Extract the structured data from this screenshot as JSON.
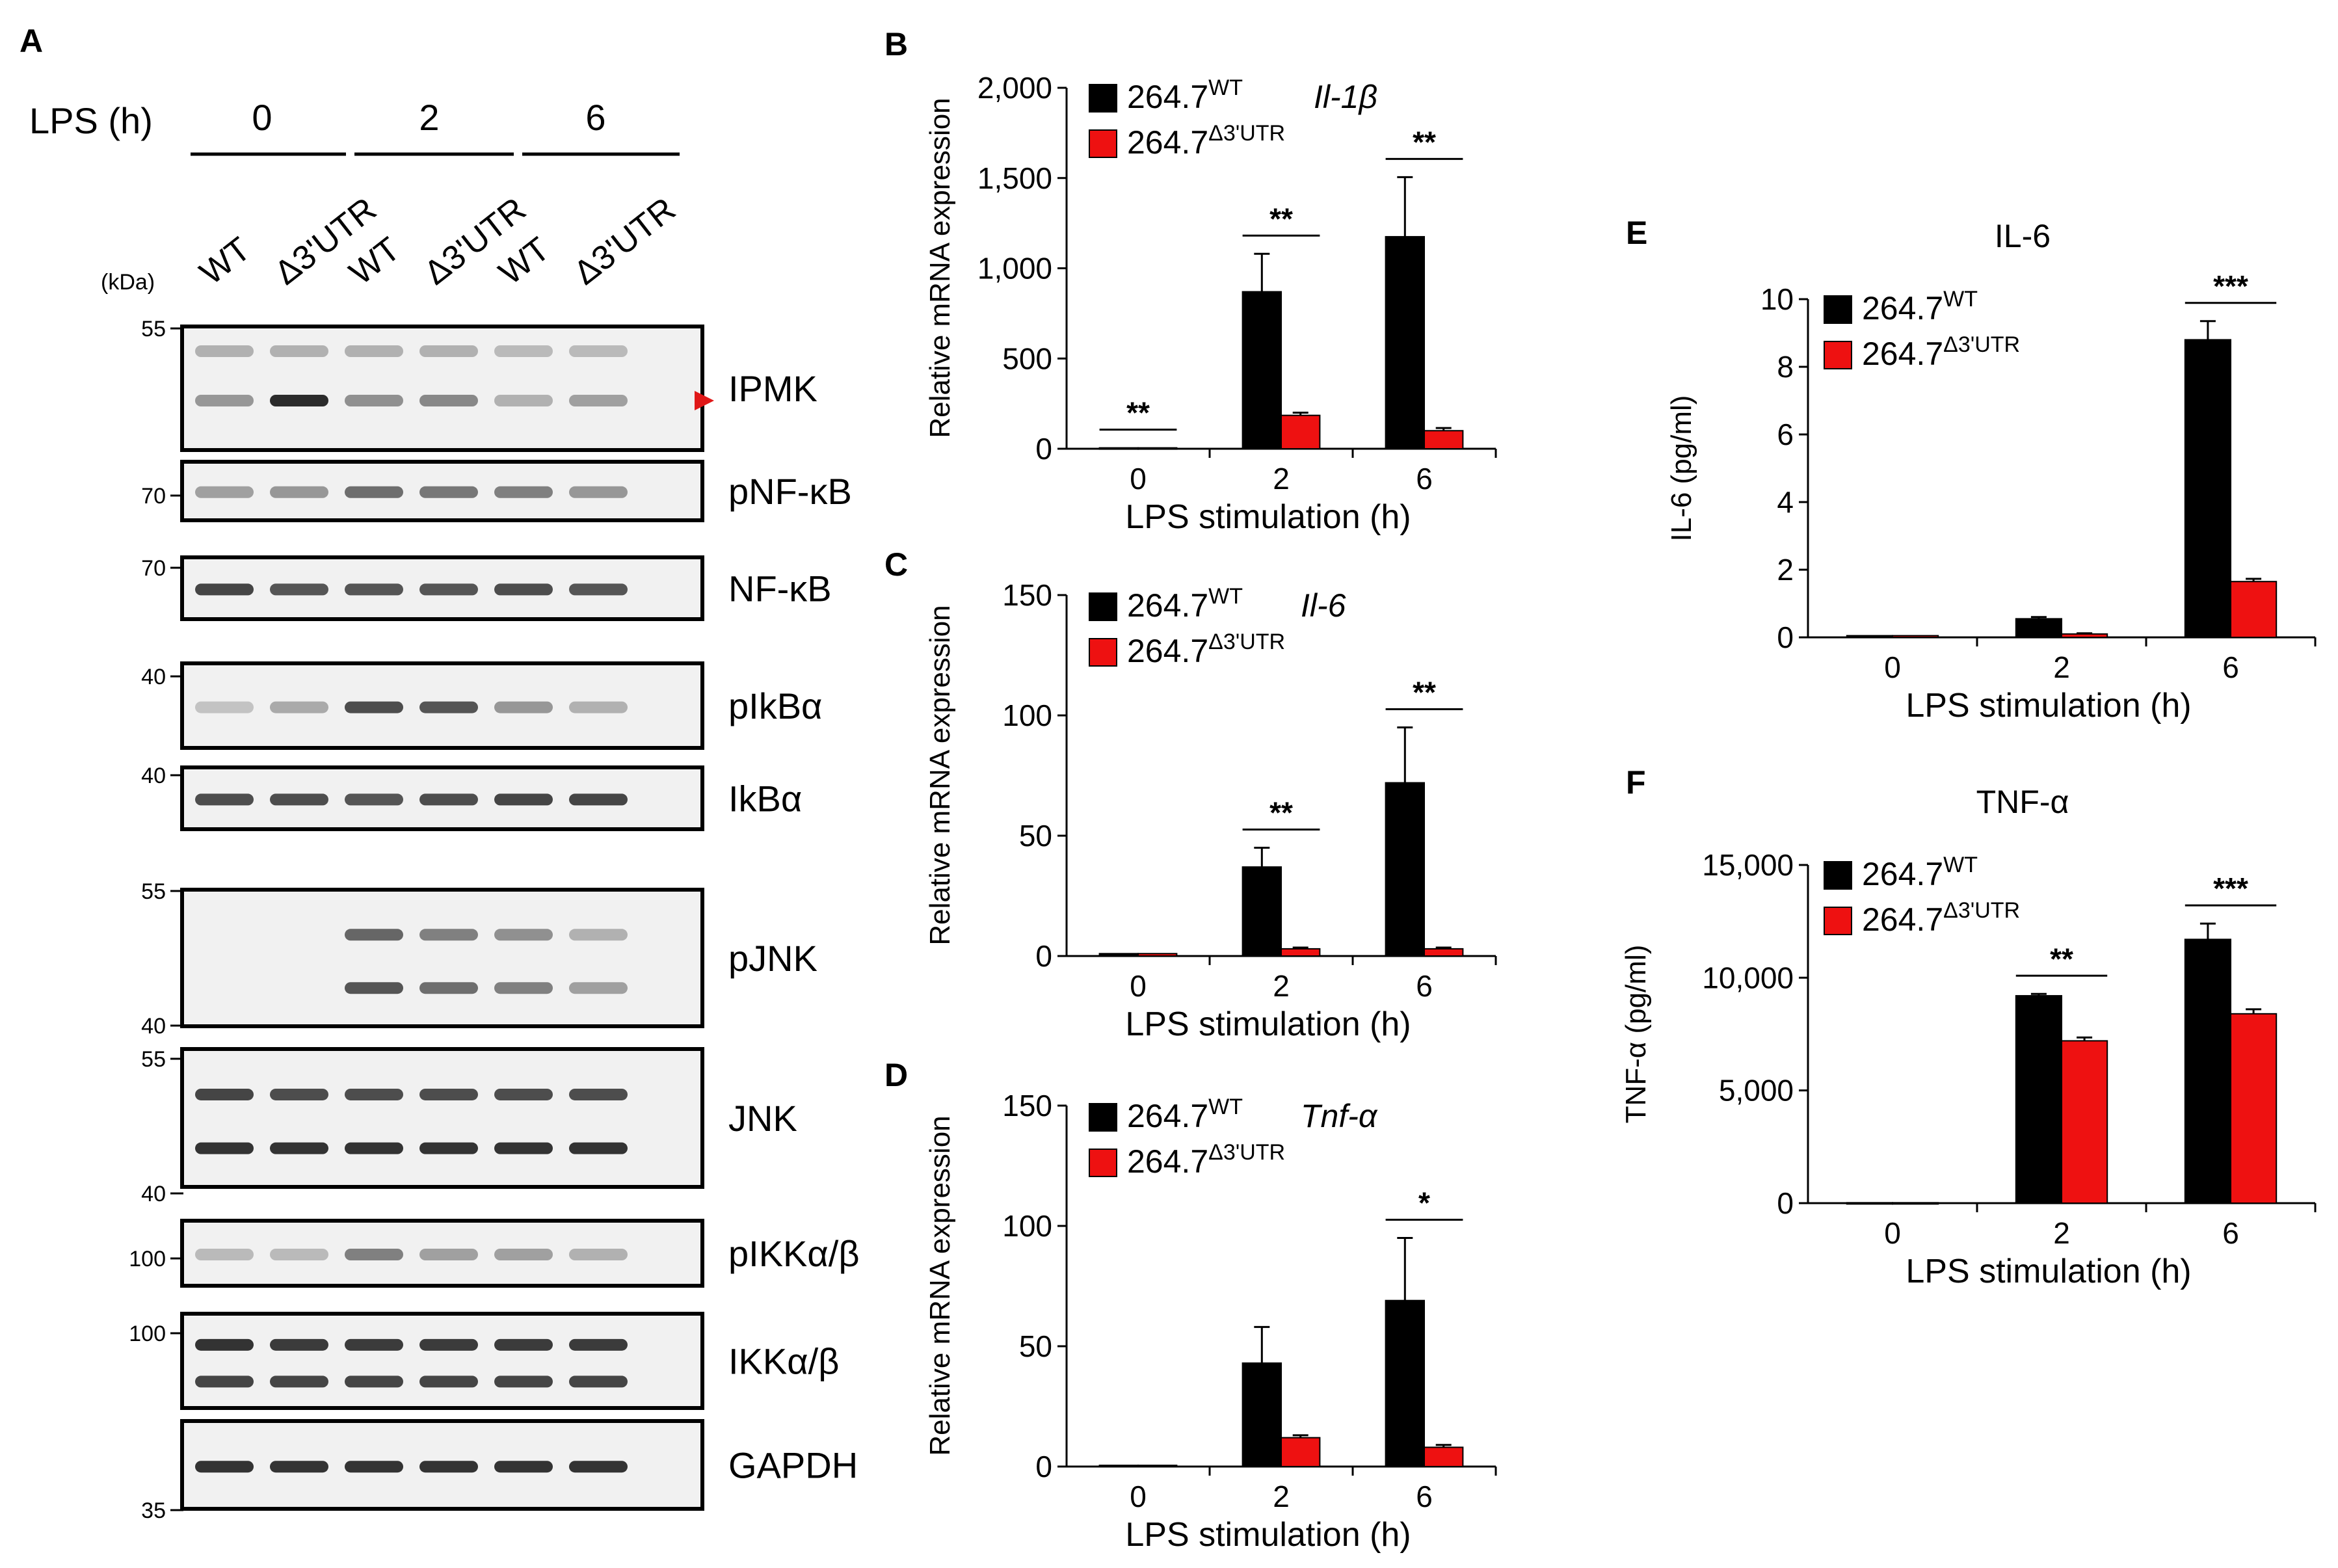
{
  "colors": {
    "wt": "#000000",
    "mut": "#ee1111",
    "band": "#2b2b2b",
    "blot_bg": "#f1f1f1",
    "arrow": "#e01818"
  },
  "panel_a": {
    "letter": "A",
    "lps_label": "LPS (h)",
    "timepoints": [
      "0",
      "2",
      "6"
    ],
    "lanes": [
      "WT",
      "Δ3'UTR",
      "WT",
      "Δ3'UTR",
      "WT",
      "Δ3'UTR"
    ],
    "kda_label": "(kDa)",
    "markers": [
      "55",
      "70",
      "70",
      "40",
      "40",
      "55",
      "40",
      "55",
      "40",
      "100",
      "100",
      "35"
    ],
    "blots": [
      {
        "label": "IPMK",
        "bands": [
          0.35,
          1.0,
          0.4,
          0.45,
          0.2,
          0.3
        ],
        "upper": [
          0.2,
          0.2,
          0.2,
          0.2,
          0.15,
          0.15
        ],
        "arrow": true
      },
      {
        "label": "pNF-κB",
        "bands": [
          0.3,
          0.35,
          0.6,
          0.55,
          0.5,
          0.35
        ]
      },
      {
        "label": "NF-κB",
        "bands": [
          0.85,
          0.75,
          0.75,
          0.75,
          0.8,
          0.75
        ]
      },
      {
        "label": "pIkBα",
        "bands": [
          0.1,
          0.25,
          0.8,
          0.75,
          0.35,
          0.2
        ]
      },
      {
        "label": "IkBα",
        "bands": [
          0.8,
          0.8,
          0.75,
          0.8,
          0.85,
          0.85
        ]
      },
      {
        "label": "pJNK",
        "bands": [
          0.0,
          0.0,
          0.65,
          0.5,
          0.4,
          0.2
        ],
        "lower": [
          0.0,
          0.0,
          0.75,
          0.6,
          0.5,
          0.3
        ]
      },
      {
        "label": "JNK",
        "bands": [
          0.85,
          0.8,
          0.8,
          0.8,
          0.8,
          0.8
        ],
        "lower": [
          0.95,
          0.95,
          0.95,
          0.95,
          0.95,
          0.95
        ]
      },
      {
        "label": "pIKKα/β",
        "bands": [
          0.15,
          0.15,
          0.5,
          0.3,
          0.3,
          0.2
        ]
      },
      {
        "label": "IKKα/β",
        "bands": [
          0.95,
          0.9,
          0.9,
          0.9,
          0.9,
          0.9
        ],
        "lower": [
          0.85,
          0.85,
          0.85,
          0.85,
          0.85,
          0.85
        ]
      },
      {
        "label": "GAPDH",
        "bands": [
          0.95,
          0.95,
          0.95,
          0.95,
          0.95,
          0.95
        ]
      }
    ]
  },
  "chart_data": [
    {
      "id": "B",
      "type": "bar",
      "title": "",
      "gene_label": "Il-1β",
      "ylabel": "Relative mRNA expression",
      "xlabel": "LPS stimulation (h)",
      "categories": [
        "0",
        "2",
        "6"
      ],
      "ylim": [
        0,
        2000
      ],
      "yticks": [
        "0",
        "500",
        "1,000",
        "1,500",
        "2,000"
      ],
      "series": [
        {
          "name": "264.7",
          "sup": "WT",
          "values": [
            5,
            870,
            1175
          ],
          "errors": [
            0,
            210,
            330
          ]
        },
        {
          "name": "264.7",
          "sup": "Δ3'UTR",
          "values": [
            5,
            185,
            100
          ],
          "errors": [
            0,
            15,
            15
          ]
        }
      ],
      "significance": [
        "**",
        "**",
        "**"
      ]
    },
    {
      "id": "C",
      "type": "bar",
      "title": "",
      "gene_label": "Il-6",
      "ylabel": "Relative mRNA expression",
      "xlabel": "LPS stimulation (h)",
      "categories": [
        "0",
        "2",
        "6"
      ],
      "ylim": [
        0,
        150
      ],
      "yticks": [
        "0",
        "50",
        "100",
        "150"
      ],
      "series": [
        {
          "name": "264.7",
          "sup": "WT",
          "values": [
            1,
            37,
            72
          ],
          "errors": [
            0,
            8,
            23
          ]
        },
        {
          "name": "264.7",
          "sup": "Δ3'UTR",
          "values": [
            1,
            3,
            3
          ],
          "errors": [
            0,
            0.5,
            0.5
          ]
        }
      ],
      "significance": [
        "",
        "**",
        "**"
      ]
    },
    {
      "id": "D",
      "type": "bar",
      "title": "",
      "gene_label": "Tnf-α",
      "ylabel": "Relative mRNA expression",
      "xlabel": "LPS stimulation (h)",
      "categories": [
        "0",
        "2",
        "6"
      ],
      "ylim": [
        0,
        150
      ],
      "yticks": [
        "0",
        "50",
        "100",
        "150"
      ],
      "series": [
        {
          "name": "264.7",
          "sup": "WT",
          "values": [
            0.5,
            43,
            69
          ],
          "errors": [
            0,
            15,
            26
          ]
        },
        {
          "name": "264.7",
          "sup": "Δ3'UTR",
          "values": [
            0.5,
            12,
            8
          ],
          "errors": [
            0,
            1,
            1
          ]
        }
      ],
      "significance": [
        "",
        "",
        "*"
      ]
    },
    {
      "id": "E",
      "type": "bar",
      "title": "IL-6",
      "gene_label": "",
      "ylabel": "IL-6 (pg/ml)",
      "xlabel": "LPS stimulation (h)",
      "categories": [
        "0",
        "2",
        "6"
      ],
      "ylim": [
        0,
        10
      ],
      "yticks": [
        "0",
        "2",
        "4",
        "6",
        "8",
        "10"
      ],
      "series": [
        {
          "name": "264.7",
          "sup": "WT",
          "values": [
            0.05,
            0.55,
            8.8
          ],
          "errors": [
            0,
            0.05,
            0.55
          ]
        },
        {
          "name": "264.7",
          "sup": "Δ3'UTR",
          "values": [
            0.05,
            0.1,
            1.65
          ],
          "errors": [
            0,
            0.02,
            0.08
          ]
        }
      ],
      "significance": [
        "",
        "",
        "***"
      ]
    },
    {
      "id": "F",
      "type": "bar",
      "title": "TNF-α",
      "gene_label": "",
      "ylabel": "TNF-α (pg/ml)",
      "xlabel": "LPS stimulation (h)",
      "categories": [
        "0",
        "2",
        "6"
      ],
      "ylim": [
        0,
        15000
      ],
      "yticks": [
        "0",
        "5,000",
        "10,000",
        "15,000"
      ],
      "series": [
        {
          "name": "264.7",
          "sup": "WT",
          "values": [
            20,
            9200,
            11700
          ],
          "errors": [
            0,
            80,
            700
          ]
        },
        {
          "name": "264.7",
          "sup": "Δ3'UTR",
          "values": [
            20,
            7200,
            8400
          ],
          "errors": [
            0,
            150,
            200
          ]
        }
      ],
      "significance": [
        "",
        "**",
        "***"
      ]
    }
  ]
}
